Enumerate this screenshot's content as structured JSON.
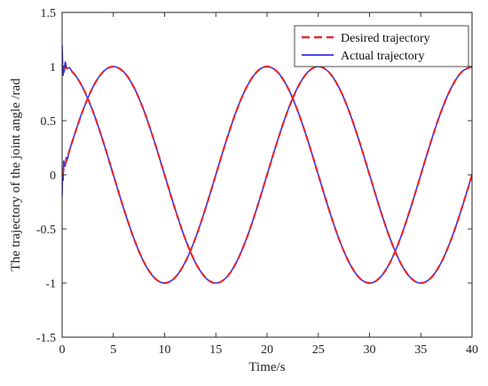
{
  "chart_data": {
    "type": "line",
    "title": "",
    "xlabel": "Time/s",
    "ylabel": "The trajectory of the joint angle /rad",
    "xlim": [
      0,
      40
    ],
    "ylim": [
      -1.5,
      1.5
    ],
    "xticks": [
      0,
      5,
      10,
      15,
      20,
      25,
      30,
      35,
      40
    ],
    "yticks": [
      -1.5,
      -1,
      -0.5,
      0,
      0.5,
      1,
      1.5
    ],
    "xtick_labels": [
      "0",
      "5",
      "10",
      "15",
      "20",
      "25",
      "30",
      "35",
      "40"
    ],
    "ytick_labels": [
      "-1.5",
      "-1",
      "-0.5",
      "0",
      "0.5",
      "1",
      "1.5"
    ],
    "grid": false,
    "legend": {
      "placement": "top-right",
      "entries": [
        "Desired trajectory",
        "Actual trajectory"
      ]
    },
    "series": [
      {
        "name": "Desired trajectory",
        "style": "dashed",
        "color": "#e8262a",
        "curves": [
          {
            "x": [
              0,
              1,
              2,
              3,
              4,
              5,
              6,
              7,
              8,
              9,
              10,
              11,
              12,
              13,
              14,
              15,
              16,
              17,
              18,
              19,
              20,
              21,
              22,
              23,
              24,
              25,
              26,
              27,
              28,
              29,
              30,
              31,
              32,
              33,
              34,
              35,
              36,
              37,
              38,
              39,
              40
            ],
            "y": [
              0,
              0.309,
              0.588,
              0.809,
              0.951,
              1,
              0.951,
              0.809,
              0.588,
              0.309,
              0,
              -0.309,
              -0.588,
              -0.809,
              -0.951,
              -1,
              -0.951,
              -0.809,
              -0.588,
              -0.309,
              0,
              0.309,
              0.588,
              0.809,
              0.951,
              1,
              0.951,
              0.809,
              0.588,
              0.309,
              0,
              -0.309,
              -0.588,
              -0.809,
              -0.951,
              -1,
              -0.951,
              -0.809,
              -0.588,
              -0.309,
              0
            ]
          },
          {
            "x": [
              0,
              1,
              2,
              3,
              4,
              5,
              6,
              7,
              8,
              9,
              10,
              11,
              12,
              13,
              14,
              15,
              16,
              17,
              18,
              19,
              20,
              21,
              22,
              23,
              24,
              25,
              26,
              27,
              28,
              29,
              30,
              31,
              32,
              33,
              34,
              35,
              36,
              37,
              38,
              39,
              40
            ],
            "y": [
              1,
              0.951,
              0.809,
              0.588,
              0.309,
              0,
              -0.309,
              -0.588,
              -0.809,
              -0.951,
              -1,
              -0.951,
              -0.809,
              -0.588,
              -0.309,
              0,
              0.309,
              0.588,
              0.809,
              0.951,
              1,
              0.951,
              0.809,
              0.588,
              0.309,
              0,
              -0.309,
              -0.588,
              -0.809,
              -0.951,
              -1,
              -0.951,
              -0.809,
              -0.588,
              -0.309,
              0,
              0.309,
              0.588,
              0.809,
              0.951,
              1
            ]
          }
        ]
      },
      {
        "name": "Actual trajectory",
        "style": "solid",
        "color": "#3333ee",
        "curves": [
          {
            "x": [
              0,
              0.05,
              0.1,
              0.15,
              0.2,
              0.3,
              0.4,
              0.5,
              0.7,
              1,
              1.5,
              2,
              3,
              4,
              5,
              6,
              7,
              8,
              9,
              10,
              11,
              12,
              13,
              14,
              15,
              16,
              17,
              18,
              19,
              20,
              21,
              22,
              23,
              24,
              25,
              26,
              27,
              28,
              29,
              30,
              31,
              32,
              33,
              34,
              35,
              36,
              37,
              38,
              39,
              40
            ],
            "y": [
              -0.2,
              0.05,
              -0.05,
              0.12,
              0.1,
              0.08,
              0.16,
              0.14,
              0.22,
              0.309,
              0.454,
              0.588,
              0.809,
              0.951,
              1,
              0.951,
              0.809,
              0.588,
              0.309,
              0,
              -0.309,
              -0.588,
              -0.809,
              -0.951,
              -1,
              -0.951,
              -0.809,
              -0.588,
              -0.309,
              0,
              0.309,
              0.588,
              0.809,
              0.951,
              1,
              0.951,
              0.809,
              0.588,
              0.309,
              0,
              -0.309,
              -0.588,
              -0.809,
              -0.951,
              -1,
              -0.951,
              -0.809,
              -0.588,
              -0.309,
              0
            ]
          },
          {
            "x": [
              0,
              0.05,
              0.1,
              0.15,
              0.2,
              0.3,
              0.4,
              0.5,
              0.7,
              1,
              1.5,
              2,
              3,
              4,
              5,
              6,
              7,
              8,
              9,
              10,
              11,
              12,
              13,
              14,
              15,
              16,
              17,
              18,
              19,
              20,
              21,
              22,
              23,
              24,
              25,
              26,
              27,
              28,
              29,
              30,
              31,
              32,
              33,
              34,
              35,
              36,
              37,
              38,
              39,
              40
            ],
            "y": [
              1.2,
              1.02,
              0.92,
              1.0,
              0.95,
              1.04,
              1.0,
              0.98,
              0.99,
              0.951,
              0.891,
              0.809,
              0.588,
              0.309,
              0,
              -0.309,
              -0.588,
              -0.809,
              -0.951,
              -1,
              -0.951,
              -0.809,
              -0.588,
              -0.309,
              0,
              0.309,
              0.588,
              0.809,
              0.951,
              1,
              0.951,
              0.809,
              0.588,
              0.309,
              0,
              -0.309,
              -0.588,
              -0.809,
              -0.951,
              -1,
              -0.951,
              -0.809,
              -0.588,
              -0.309,
              0,
              0.309,
              0.588,
              0.809,
              0.951,
              1
            ]
          }
        ]
      }
    ]
  }
}
